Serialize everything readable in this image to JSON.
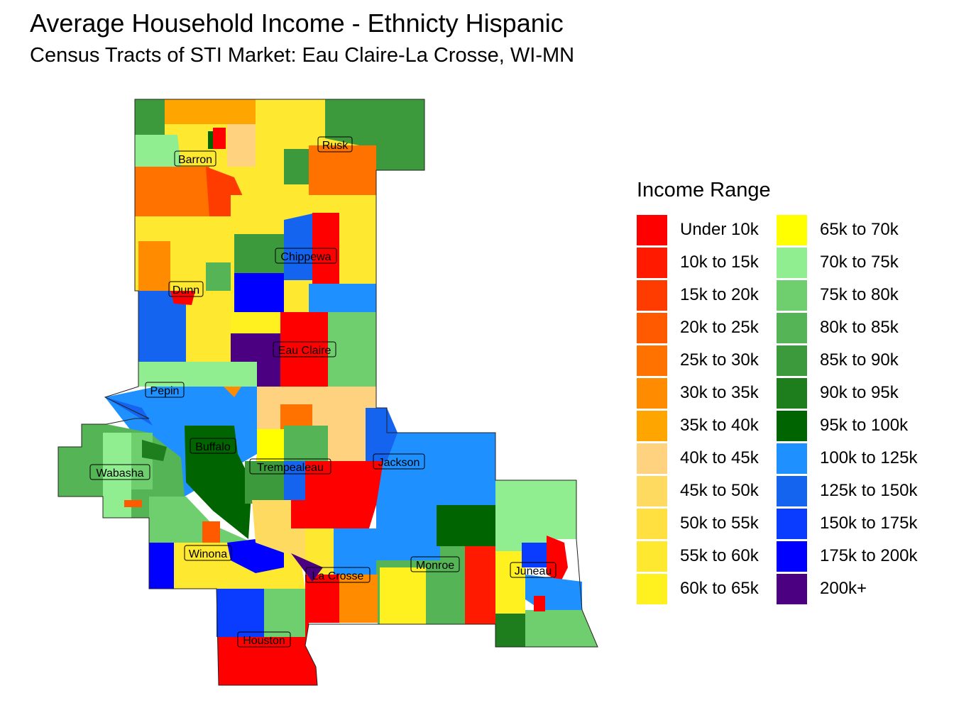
{
  "title": "Average Household Income - Ethnicty Hispanic",
  "subtitle": "Census Tracts of STI Market: Eau Claire-La Crosse, WI-MN",
  "legend": {
    "title": "Income Range",
    "items": [
      {
        "label": "Under 10k",
        "color": "#FF0000"
      },
      {
        "label": "10k to 15k",
        "color": "#FF1A00"
      },
      {
        "label": "15k to 20k",
        "color": "#FF3C00"
      },
      {
        "label": "20k to 25k",
        "color": "#FF5A00"
      },
      {
        "label": "25k to 30k",
        "color": "#FF7200"
      },
      {
        "label": "30k to 35k",
        "color": "#FF8C00"
      },
      {
        "label": "35k to 40k",
        "color": "#FFA500"
      },
      {
        "label": "40k to 45k",
        "color": "#FFD280"
      },
      {
        "label": "45k to 50k",
        "color": "#FFDA60"
      },
      {
        "label": "50k to 55k",
        "color": "#FFE040"
      },
      {
        "label": "55k to 60k",
        "color": "#FFE830"
      },
      {
        "label": "60k to 65k",
        "color": "#FFF020"
      },
      {
        "label": "65k to 70k",
        "color": "#FFFF00"
      },
      {
        "label": "70k to 75k",
        "color": "#90EE90"
      },
      {
        "label": "75k to 80k",
        "color": "#6FCF6F"
      },
      {
        "label": "80k to 85k",
        "color": "#55B455"
      },
      {
        "label": "85k to 90k",
        "color": "#3C9A3C"
      },
      {
        "label": "90k to 95k",
        "color": "#1E7E1E"
      },
      {
        "label": "95k to 100k",
        "color": "#006400"
      },
      {
        "label": "100k to 125k",
        "color": "#1E90FF"
      },
      {
        "label": "125k to 150k",
        "color": "#1464F0"
      },
      {
        "label": "150k to 175k",
        "color": "#0A3CFF"
      },
      {
        "label": "175k to 200k",
        "color": "#0000FF"
      },
      {
        "label": "200k+",
        "color": "#4B0082"
      }
    ]
  },
  "counties": [
    "Barron",
    "Rusk",
    "Chippewa",
    "Dunn",
    "Eau Claire",
    "Pepin",
    "Buffalo",
    "Trempealeau",
    "Jackson",
    "Wabasha",
    "Winona",
    "La Crosse",
    "Monroe",
    "Juneau",
    "Houston"
  ]
}
